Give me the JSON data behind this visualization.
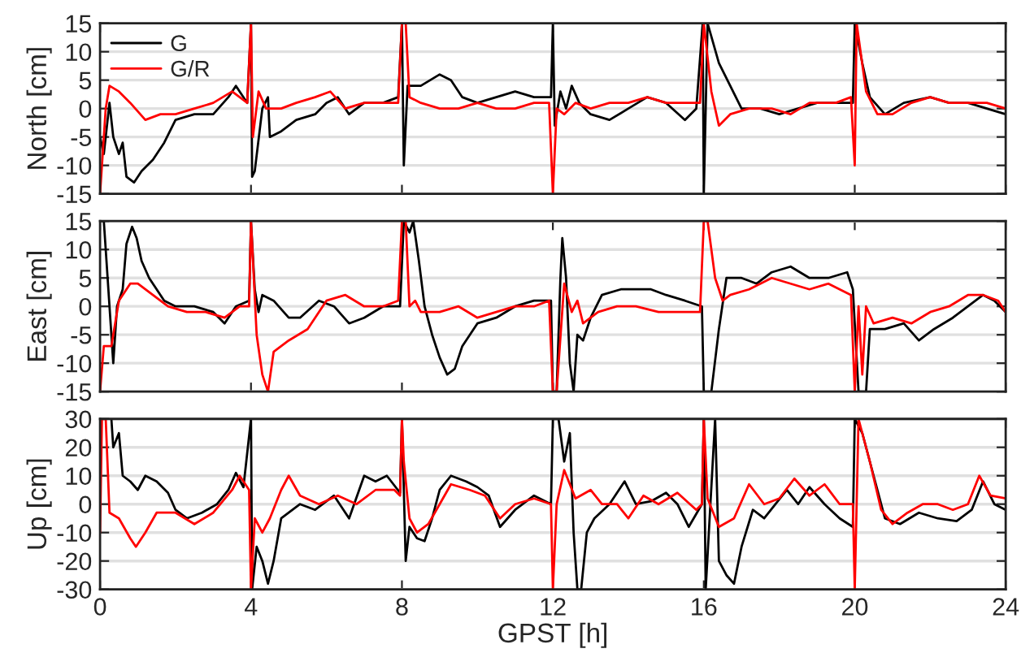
{
  "chart_data": [
    {
      "type": "line",
      "ylabel": "North [cm]",
      "xlim": [
        0,
        24
      ],
      "xticks": [
        0,
        4,
        8,
        12,
        16,
        20,
        24
      ],
      "ylim": [
        -15,
        15
      ],
      "yticks": [
        -15,
        -10,
        -5,
        0,
        5,
        10,
        15
      ],
      "grid": "y",
      "tick_labels": "y",
      "legend": "top left",
      "series": [
        {
          "name": "G",
          "color": "#000000",
          "x": [
            0,
            0.1,
            0.25,
            0.35,
            0.5,
            0.6,
            0.7,
            0.9,
            1.1,
            1.4,
            1.7,
            2.0,
            2.5,
            3.0,
            3.4,
            3.6,
            3.9,
            4.0,
            4.03,
            4.1,
            4.3,
            4.45,
            4.5,
            4.8,
            5.2,
            5.7,
            6.0,
            6.3,
            6.6,
            7.0,
            7.5,
            7.9,
            8.0,
            8.05,
            8.15,
            8.5,
            9.0,
            9.3,
            9.6,
            10.0,
            10.5,
            11.0,
            11.5,
            11.95,
            12.0,
            12.05,
            12.2,
            12.35,
            12.5,
            12.7,
            13.0,
            13.5,
            14.0,
            14.5,
            15.0,
            15.5,
            15.8,
            15.97,
            16.0,
            16.1,
            16.4,
            16.7,
            17.0,
            17.5,
            18.0,
            18.5,
            19.0,
            19.5,
            19.95,
            20.0,
            20.2,
            20.4,
            20.8,
            21.3,
            22.0,
            22.5,
            23.0,
            23.5,
            24.0
          ],
          "values": [
            -5,
            -8,
            1,
            -5,
            -8,
            -6,
            -12,
            -13,
            -11,
            -9,
            -6,
            -2,
            -1,
            -1,
            2,
            4,
            1,
            15,
            -12,
            -11,
            0,
            2,
            -5,
            -4,
            -2,
            -1,
            1,
            2,
            -1,
            1,
            1,
            2,
            15,
            -10,
            4,
            4,
            6,
            5,
            2,
            1,
            2,
            3,
            2,
            2,
            15,
            -3,
            3,
            0,
            4,
            1,
            -1,
            -2,
            0,
            2,
            1,
            -2,
            0,
            15,
            -15,
            15,
            8,
            4,
            0,
            0,
            -1,
            0,
            1,
            1,
            1,
            15,
            8,
            2,
            -1,
            1,
            2,
            1,
            1,
            0,
            -1
          ]
        },
        {
          "name": "G/R",
          "color": "#ff0000",
          "x": [
            0,
            0.15,
            0.25,
            0.5,
            0.8,
            1.2,
            1.6,
            2.0,
            2.5,
            3.0,
            3.5,
            3.9,
            4.0,
            4.05,
            4.2,
            4.4,
            4.8,
            5.2,
            5.7,
            6.1,
            6.5,
            7.0,
            7.5,
            7.9,
            8.0,
            8.1,
            8.2,
            8.5,
            9.0,
            9.5,
            10.0,
            10.5,
            11.0,
            11.5,
            11.9,
            12.0,
            12.1,
            12.3,
            12.6,
            13.0,
            13.5,
            14.0,
            14.5,
            15.0,
            15.5,
            15.9,
            16.0,
            16.2,
            16.4,
            16.7,
            17.2,
            17.8,
            18.3,
            18.8,
            19.5,
            19.9,
            20.0,
            20.05,
            20.3,
            20.6,
            21.0,
            21.5,
            22.0,
            22.5,
            23.0,
            23.5,
            24.0
          ],
          "values": [
            -15,
            0,
            4,
            3,
            1,
            -2,
            -1,
            -1,
            0,
            1,
            3,
            1,
            15,
            -5,
            3,
            0,
            0,
            1,
            2,
            3,
            0,
            1,
            1,
            1,
            15,
            15,
            2,
            1,
            0,
            0,
            1,
            0,
            0,
            1,
            1,
            -15,
            0,
            -1,
            1,
            0,
            1,
            1,
            2,
            1,
            1,
            1,
            15,
            3,
            -3,
            -1,
            0,
            0,
            -1,
            1,
            1,
            2,
            -10,
            15,
            3,
            -1,
            -1,
            1,
            2,
            1,
            1,
            1,
            0
          ]
        }
      ]
    },
    {
      "type": "line",
      "ylabel": "East [cm]",
      "xlim": [
        0,
        24
      ],
      "xticks": [
        0,
        4,
        8,
        12,
        16,
        20,
        24
      ],
      "ylim": [
        -15,
        15
      ],
      "yticks": [
        -15,
        -10,
        -5,
        0,
        5,
        10,
        15
      ],
      "grid": "y",
      "tick_labels": "y",
      "series": [
        {
          "color": "#000000",
          "x": [
            0,
            0.1,
            0.2,
            0.3,
            0.35,
            0.45,
            0.6,
            0.7,
            0.85,
            0.97,
            1.1,
            1.3,
            1.7,
            2.0,
            2.5,
            3.0,
            3.3,
            3.6,
            3.95,
            4.0,
            4.1,
            4.2,
            4.3,
            4.6,
            5.0,
            5.3,
            5.8,
            6.2,
            6.6,
            7.0,
            7.5,
            7.95,
            8.05,
            8.2,
            8.3,
            8.45,
            8.6,
            8.8,
            9.0,
            9.2,
            9.4,
            9.6,
            10.0,
            10.5,
            11.0,
            11.5,
            11.95,
            12.0,
            12.1,
            12.2,
            12.25,
            12.35,
            12.45,
            12.55,
            12.65,
            12.8,
            13.0,
            13.3,
            13.8,
            14.2,
            14.6,
            15.0,
            15.5,
            15.95,
            16.0,
            16.2,
            16.4,
            16.6,
            17.0,
            17.4,
            17.8,
            18.3,
            18.8,
            19.3,
            19.8,
            19.95,
            20.1,
            20.3,
            20.4,
            20.8,
            21.3,
            21.7,
            22.1,
            22.6,
            23.0,
            23.4,
            23.7,
            24.0
          ],
          "values": [
            15,
            15,
            5,
            -5,
            -10,
            0,
            3,
            11,
            14,
            12,
            8,
            5,
            1,
            0,
            0,
            -1,
            -3,
            0,
            1,
            15,
            3,
            -1,
            2,
            1,
            -2,
            -2,
            1,
            0,
            -3,
            -2,
            0,
            0,
            15,
            13,
            15,
            8,
            0,
            -5,
            -9,
            -12,
            -11,
            -7,
            -3,
            -2,
            0,
            1,
            1,
            -15,
            -15,
            5,
            12,
            5,
            -10,
            -15,
            -5,
            -6,
            -2,
            2,
            3,
            3,
            3,
            2,
            1,
            0,
            -15,
            -15,
            -4,
            5,
            5,
            4,
            6,
            7,
            5,
            5,
            6,
            3,
            -15,
            -15,
            -4,
            -4,
            -3,
            -6,
            -4,
            -2,
            0,
            2,
            1,
            -1
          ]
        },
        {
          "color": "#ff0000",
          "x": [
            0,
            0.1,
            0.3,
            0.5,
            0.8,
            1.0,
            1.4,
            1.8,
            2.3,
            2.8,
            3.3,
            3.7,
            3.95,
            4.0,
            4.15,
            4.3,
            4.45,
            4.6,
            5.0,
            5.5,
            6.0,
            6.5,
            7.0,
            7.5,
            7.9,
            8.0,
            8.1,
            8.2,
            8.35,
            8.5,
            9.0,
            9.5,
            10.0,
            10.5,
            11.0,
            11.5,
            11.9,
            12.0,
            12.1,
            12.3,
            12.5,
            12.65,
            12.8,
            13.2,
            13.7,
            14.2,
            14.8,
            15.5,
            15.9,
            16.0,
            16.1,
            16.3,
            16.5,
            16.7,
            17.2,
            17.8,
            18.3,
            18.8,
            19.3,
            19.9,
            20.0,
            20.1,
            20.2,
            20.3,
            20.5,
            21.0,
            21.5,
            22.0,
            22.5,
            23.0,
            23.4,
            23.8,
            24.0
          ],
          "values": [
            -15,
            -7,
            -7,
            1,
            4,
            4,
            2,
            0,
            -1,
            -1,
            -2,
            0,
            0,
            15,
            -5,
            -12,
            -15,
            -8,
            -6,
            -4,
            1,
            2,
            0,
            0,
            1,
            15,
            15,
            0,
            1,
            -1,
            -1,
            0,
            -2,
            -1,
            0,
            0,
            1,
            -15,
            -15,
            4,
            -1,
            1,
            -3,
            -1,
            0,
            0,
            -1,
            -1,
            -1,
            15,
            15,
            5,
            1,
            2,
            3,
            5,
            4,
            3,
            4,
            2,
            -15,
            0,
            -12,
            0,
            -3,
            -2,
            -3,
            -1,
            0,
            2,
            2,
            1,
            -1
          ]
        }
      ]
    },
    {
      "type": "line",
      "ylabel": "Up [cm]",
      "xlabel": "GPST [h]",
      "xlim": [
        0,
        24
      ],
      "xticks": [
        0,
        4,
        8,
        12,
        16,
        20,
        24
      ],
      "ylim": [
        -30,
        30
      ],
      "yticks": [
        -30,
        -20,
        -10,
        0,
        10,
        20,
        30
      ],
      "grid": "y",
      "series": [
        {
          "color": "#000000",
          "x": [
            0.3,
            0.35,
            0.5,
            0.6,
            0.8,
            1.0,
            1.2,
            1.5,
            1.8,
            2.0,
            2.3,
            2.7,
            3.1,
            3.4,
            3.6,
            3.8,
            4.0,
            4.03,
            4.15,
            4.3,
            4.45,
            4.6,
            4.8,
            5.0,
            5.3,
            5.7,
            6.2,
            6.6,
            7.0,
            7.3,
            7.6,
            7.95,
            8.0,
            8.1,
            8.2,
            8.4,
            8.6,
            8.8,
            9.0,
            9.3,
            9.7,
            10.0,
            10.3,
            10.6,
            11.0,
            11.5,
            11.95,
            12.0,
            12.15,
            12.3,
            12.45,
            12.55,
            12.65,
            12.75,
            12.9,
            13.1,
            13.5,
            13.9,
            14.2,
            14.6,
            15.0,
            15.3,
            15.6,
            15.95,
            16.0,
            16.05,
            16.3,
            16.4,
            16.6,
            16.8,
            17.0,
            17.3,
            17.6,
            17.9,
            18.2,
            18.5,
            18.8,
            19.2,
            19.6,
            19.95,
            20.0,
            20.2,
            20.5,
            20.8,
            21.2,
            21.7,
            22.2,
            22.7,
            23.1,
            23.4,
            23.7,
            24.0
          ],
          "values": [
            30,
            20,
            25,
            10,
            8,
            5,
            10,
            8,
            4,
            -2,
            -5,
            -3,
            0,
            5,
            11,
            6,
            30,
            -30,
            -15,
            -20,
            -28,
            -20,
            -5,
            -3,
            0,
            -2,
            3,
            -5,
            10,
            8,
            10,
            4,
            30,
            -20,
            -8,
            -12,
            -13,
            -5,
            5,
            10,
            8,
            6,
            3,
            -8,
            -2,
            3,
            0,
            30,
            30,
            15,
            25,
            -10,
            -30,
            -30,
            -10,
            -5,
            0,
            8,
            0,
            1,
            4,
            0,
            -8,
            0,
            30,
            -30,
            30,
            -20,
            -25,
            -28,
            -15,
            -2,
            -5,
            0,
            5,
            0,
            6,
            0,
            -5,
            -8,
            30,
            25,
            10,
            -5,
            -7,
            -3,
            -5,
            -6,
            -2,
            8,
            0,
            -2
          ]
        },
        {
          "color": "#ff0000",
          "x": [
            0,
            0.05,
            0.15,
            0.25,
            0.5,
            0.8,
            0.95,
            1.2,
            1.5,
            2.0,
            2.5,
            3.0,
            3.5,
            3.7,
            3.95,
            4.0,
            4.1,
            4.3,
            4.5,
            4.8,
            5.0,
            5.3,
            5.8,
            6.3,
            6.8,
            7.3,
            7.8,
            7.95,
            8.0,
            8.05,
            8.2,
            8.4,
            8.7,
            9.0,
            9.3,
            9.8,
            10.2,
            10.6,
            11.0,
            11.5,
            11.95,
            12.0,
            12.1,
            12.3,
            12.6,
            13.0,
            13.3,
            13.7,
            14.0,
            14.4,
            14.8,
            15.3,
            15.8,
            15.95,
            16.0,
            16.1,
            16.4,
            16.8,
            17.2,
            17.6,
            18.0,
            18.4,
            18.8,
            19.2,
            19.6,
            19.95,
            20.0,
            20.1,
            20.4,
            20.7,
            21.0,
            21.4,
            21.8,
            22.2,
            22.6,
            23.0,
            23.3,
            23.6,
            24.0
          ],
          "values": [
            -10,
            30,
            30,
            -3,
            -5,
            -12,
            -15,
            -10,
            -3,
            -3,
            -7,
            -3,
            5,
            10,
            5,
            -30,
            -5,
            -10,
            -5,
            5,
            10,
            3,
            0,
            3,
            0,
            5,
            5,
            3,
            30,
            15,
            -5,
            -10,
            -7,
            0,
            7,
            5,
            3,
            -5,
            0,
            2,
            0,
            -30,
            0,
            12,
            2,
            5,
            0,
            0,
            -5,
            3,
            0,
            4,
            -2,
            0,
            30,
            2,
            -8,
            -5,
            7,
            0,
            2,
            9,
            3,
            7,
            0,
            0,
            -30,
            30,
            15,
            -2,
            -7,
            -3,
            0,
            0,
            -2,
            0,
            10,
            3,
            2
          ]
        }
      ]
    }
  ]
}
